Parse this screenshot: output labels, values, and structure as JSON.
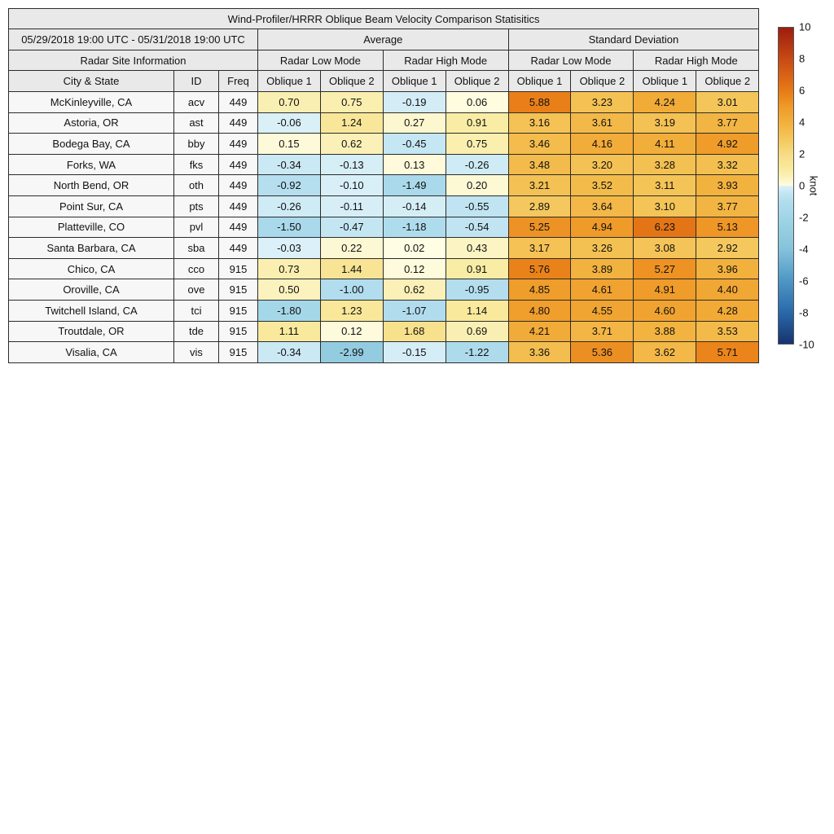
{
  "chart_data": {
    "type": "heatmap",
    "title": "Wind-Profiler/HRRR Oblique Beam Velocity Comparison Statisitics",
    "period": "05/29/2018 19:00 UTC - 05/31/2018 19:00 UTC",
    "site_info_header": "Radar Site Information",
    "group_headers": [
      "Average",
      "Standard Deviation"
    ],
    "mode_headers": [
      "Radar Low Mode",
      "Radar High Mode",
      "Radar Low Mode",
      "Radar High Mode"
    ],
    "column_headers": [
      "City & State",
      "ID",
      "Freq",
      "Oblique 1",
      "Oblique 2",
      "Oblique 1",
      "Oblique 2",
      "Oblique 1",
      "Oblique 2",
      "Oblique 1",
      "Oblique 2"
    ],
    "rows": [
      {
        "city": "McKinleyville, CA",
        "id": "acv",
        "freq": "449",
        "values": [
          0.7,
          0.75,
          -0.19,
          0.06,
          5.88,
          3.23,
          4.24,
          3.01
        ]
      },
      {
        "city": "Astoria, OR",
        "id": "ast",
        "freq": "449",
        "values": [
          -0.06,
          1.24,
          0.27,
          0.91,
          3.16,
          3.61,
          3.19,
          3.77
        ]
      },
      {
        "city": "Bodega Bay, CA",
        "id": "bby",
        "freq": "449",
        "values": [
          0.15,
          0.62,
          -0.45,
          0.75,
          3.46,
          4.16,
          4.11,
          4.92
        ]
      },
      {
        "city": "Forks, WA",
        "id": "fks",
        "freq": "449",
        "values": [
          -0.34,
          -0.13,
          0.13,
          -0.26,
          3.48,
          3.2,
          3.28,
          3.32
        ]
      },
      {
        "city": "North Bend, OR",
        "id": "oth",
        "freq": "449",
        "values": [
          -0.92,
          -0.1,
          -1.49,
          0.2,
          3.21,
          3.52,
          3.11,
          3.93
        ]
      },
      {
        "city": "Point Sur, CA",
        "id": "pts",
        "freq": "449",
        "values": [
          -0.26,
          -0.11,
          -0.14,
          -0.55,
          2.89,
          3.64,
          3.1,
          3.77
        ]
      },
      {
        "city": "Platteville, CO",
        "id": "pvl",
        "freq": "449",
        "values": [
          -1.5,
          -0.47,
          -1.18,
          -0.54,
          5.25,
          4.94,
          6.23,
          5.13
        ]
      },
      {
        "city": "Santa Barbara, CA",
        "id": "sba",
        "freq": "449",
        "values": [
          -0.03,
          0.22,
          0.02,
          0.43,
          3.17,
          3.26,
          3.08,
          2.92
        ]
      },
      {
        "city": "Chico, CA",
        "id": "cco",
        "freq": "915",
        "values": [
          0.73,
          1.44,
          0.12,
          0.91,
          5.76,
          3.89,
          5.27,
          3.96
        ]
      },
      {
        "city": "Oroville, CA",
        "id": "ove",
        "freq": "915",
        "values": [
          0.5,
          -1.0,
          0.62,
          -0.95,
          4.85,
          4.61,
          4.91,
          4.4
        ]
      },
      {
        "city": "Twitchell Island, CA",
        "id": "tci",
        "freq": "915",
        "values": [
          -1.8,
          1.23,
          -1.07,
          1.14,
          4.8,
          4.55,
          4.6,
          4.28
        ]
      },
      {
        "city": "Troutdale, OR",
        "id": "tde",
        "freq": "915",
        "values": [
          1.11,
          0.12,
          1.68,
          0.69,
          4.21,
          3.71,
          3.88,
          3.53
        ]
      },
      {
        "city": "Visalia, CA",
        "id": "vis",
        "freq": "915",
        "values": [
          -0.34,
          -2.99,
          -0.15,
          -1.22,
          3.36,
          5.36,
          3.62,
          5.71
        ]
      }
    ],
    "colorbar": {
      "label": "knot",
      "min": -10,
      "max": 10,
      "ticks": [
        10,
        8,
        6,
        4,
        2,
        0,
        -2,
        -4,
        -6,
        -8,
        -10
      ],
      "neg_stops": [
        [
          -10,
          "#16336F"
        ],
        [
          -8,
          "#2A69AA"
        ],
        [
          -6,
          "#4E97C5"
        ],
        [
          -4,
          "#85C3DC"
        ],
        [
          -3,
          "#93CCE0"
        ],
        [
          -2,
          "#A0D5E7"
        ],
        [
          -1,
          "#B2DDEE"
        ],
        [
          -0.5,
          "#C2E5F2"
        ],
        [
          0,
          "#DDF1F8"
        ]
      ],
      "pos_stops": [
        [
          0,
          "#FFFDE5"
        ],
        [
          0.5,
          "#FBF2BE"
        ],
        [
          1,
          "#F9EBA0"
        ],
        [
          2,
          "#F7DC84"
        ],
        [
          3,
          "#F4C65A"
        ],
        [
          4,
          "#F2B03C"
        ],
        [
          5,
          "#EF9A28"
        ],
        [
          6,
          "#E87B16"
        ],
        [
          8,
          "#C84A15"
        ],
        [
          10,
          "#9C1D0F"
        ]
      ]
    }
  }
}
